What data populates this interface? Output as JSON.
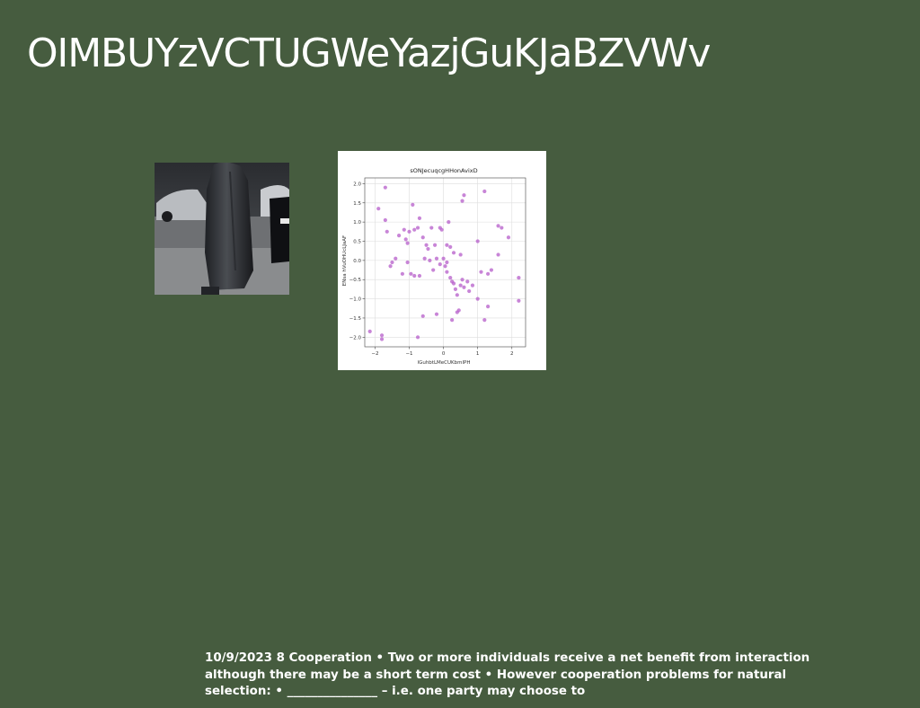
{
  "slide": {
    "title": "OIMBUYzVCTUGWeYazjGuKJaBZVWv",
    "footer_text": "10/9/2023 8 Cooperation • Two or more individuals receive a net benefit from interaction although there may be a short term cost • However cooperation problems for natural selection: • _______________ – i.e. one party may choose to"
  },
  "colors": {
    "background": "#465c3f",
    "point": "#b65cc9"
  },
  "chart_data": {
    "type": "scatter",
    "title": "sONJecuqcgHHonAvixD",
    "xlabel": "lGuhbtLMeCUKbmlPH",
    "ylabel": "ENsa hVuOHUcLJaAF",
    "xlim": [
      -2.3,
      2.4
    ],
    "ylim": [
      -2.25,
      2.15
    ],
    "x_ticks": [
      -2,
      -1,
      0,
      1,
      2
    ],
    "y_ticks": [
      -2.0,
      -1.5,
      -1.0,
      -0.5,
      0.0,
      0.5,
      1.0,
      1.5,
      2.0
    ],
    "grid": true,
    "points": [
      [
        -1.7,
        1.9
      ],
      [
        -1.9,
        1.35
      ],
      [
        -1.7,
        1.05
      ],
      [
        -1.65,
        0.75
      ],
      [
        -1.3,
        0.65
      ],
      [
        -1.15,
        0.8
      ],
      [
        -1.1,
        0.55
      ],
      [
        -1.05,
        0.45
      ],
      [
        -1.0,
        0.75
      ],
      [
        -0.9,
        1.45
      ],
      [
        -0.75,
        0.85
      ],
      [
        -0.7,
        1.1
      ],
      [
        -0.6,
        0.6
      ],
      [
        -0.5,
        0.4
      ],
      [
        -0.45,
        0.3
      ],
      [
        -0.35,
        0.85
      ],
      [
        -0.1,
        0.85
      ],
      [
        -0.05,
        0.8
      ],
      [
        0.15,
        1.0
      ],
      [
        0.1,
        0.4
      ],
      [
        0.2,
        0.35
      ],
      [
        0.3,
        0.2
      ],
      [
        0.5,
        0.15
      ],
      [
        0.55,
        1.55
      ],
      [
        0.6,
        1.7
      ],
      [
        1.0,
        0.5
      ],
      [
        1.2,
        1.8
      ],
      [
        1.6,
        0.9
      ],
      [
        1.7,
        0.85
      ],
      [
        1.9,
        0.6
      ],
      [
        -1.55,
        -0.15
      ],
      [
        -1.5,
        -0.05
      ],
      [
        -1.4,
        0.05
      ],
      [
        -1.2,
        -0.35
      ],
      [
        -0.95,
        -0.35
      ],
      [
        -0.85,
        -0.4
      ],
      [
        -0.7,
        -0.4
      ],
      [
        -0.55,
        0.05
      ],
      [
        -0.4,
        0.0
      ],
      [
        -0.3,
        -0.25
      ],
      [
        -0.2,
        0.05
      ],
      [
        -0.1,
        -0.1
      ],
      [
        0.0,
        0.05
      ],
      [
        0.05,
        -0.15
      ],
      [
        0.1,
        -0.3
      ],
      [
        0.2,
        -0.45
      ],
      [
        0.25,
        -0.55
      ],
      [
        0.3,
        -0.6
      ],
      [
        0.35,
        -0.75
      ],
      [
        0.4,
        -0.9
      ],
      [
        0.5,
        -0.65
      ],
      [
        0.6,
        -0.7
      ],
      [
        0.7,
        -0.55
      ],
      [
        0.75,
        -0.8
      ],
      [
        0.85,
        -0.65
      ],
      [
        1.0,
        -1.0
      ],
      [
        1.1,
        -0.3
      ],
      [
        1.3,
        -0.35
      ],
      [
        1.4,
        -0.25
      ],
      [
        1.6,
        0.15
      ],
      [
        1.3,
        -1.2
      ],
      [
        1.2,
        -1.55
      ],
      [
        -0.2,
        -1.4
      ],
      [
        -0.6,
        -1.45
      ],
      [
        0.25,
        -1.55
      ],
      [
        0.4,
        -1.35
      ],
      [
        0.45,
        -1.3
      ],
      [
        -0.75,
        -2.0
      ],
      [
        -2.15,
        -1.85
      ],
      [
        -1.8,
        -1.95
      ],
      [
        -1.8,
        -2.05
      ],
      [
        2.2,
        -0.45
      ],
      [
        2.2,
        -1.05
      ],
      [
        -1.05,
        -0.05
      ],
      [
        -0.85,
        0.8
      ],
      [
        0.55,
        -0.5
      ],
      [
        0.1,
        -0.05
      ],
      [
        -0.25,
        0.4
      ]
    ]
  }
}
